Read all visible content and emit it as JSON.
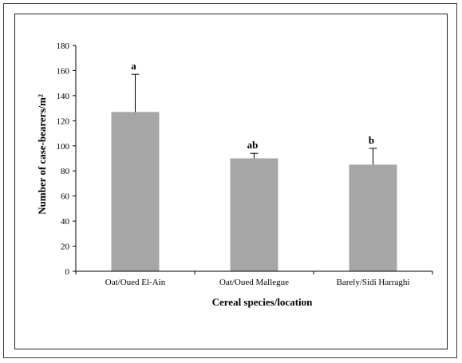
{
  "chart_data": {
    "type": "bar",
    "categories": [
      "Oat/Oued El-Ain",
      "Oat/Oued Mallegue",
      "Barely/Sidi Harraghi"
    ],
    "values": [
      127,
      90,
      85
    ],
    "error_upper": [
      157,
      94,
      98
    ],
    "significance_letters": [
      "a",
      "ab",
      "b"
    ],
    "title": "",
    "xlabel": "Cereal species/location",
    "ylabel": "Number of case-bearers/m²",
    "ylim": [
      0,
      180
    ],
    "yticks": [
      0,
      20,
      40,
      60,
      80,
      100,
      120,
      140,
      160,
      180
    ],
    "bar_color": "#a6a6a6",
    "grid": false,
    "legend": "none"
  }
}
